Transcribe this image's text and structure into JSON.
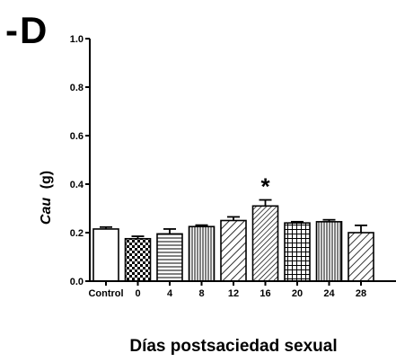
{
  "panel": {
    "dash": "-",
    "letter": "D"
  },
  "chart_data": {
    "type": "bar",
    "title": "",
    "xlabel": "Días postsaciedad sexual",
    "ylabel_italic": "Cau",
    "ylabel_unit": "(g)",
    "ylim": [
      0,
      1.0
    ],
    "yticks": [
      "0.0",
      "0.2",
      "0.4",
      "0.6",
      "0.8",
      "1.0"
    ],
    "categories": [
      "Control",
      "0",
      "4",
      "8",
      "12",
      "16",
      "20",
      "24",
      "28"
    ],
    "values": [
      0.215,
      0.175,
      0.195,
      0.225,
      0.25,
      0.31,
      0.24,
      0.245,
      0.2
    ],
    "errors": [
      0.008,
      0.01,
      0.02,
      0.006,
      0.015,
      0.025,
      0.005,
      0.008,
      0.03
    ],
    "patterns": [
      "solid-white",
      "checker",
      "horizontal-lines",
      "dense-vertical-lines",
      "diagonal-down",
      "diagonal-down-dense",
      "grid",
      "dense-vertical-lines",
      "diagonal-down"
    ],
    "significance": [
      {
        "category": "16",
        "marker": "*"
      }
    ]
  }
}
